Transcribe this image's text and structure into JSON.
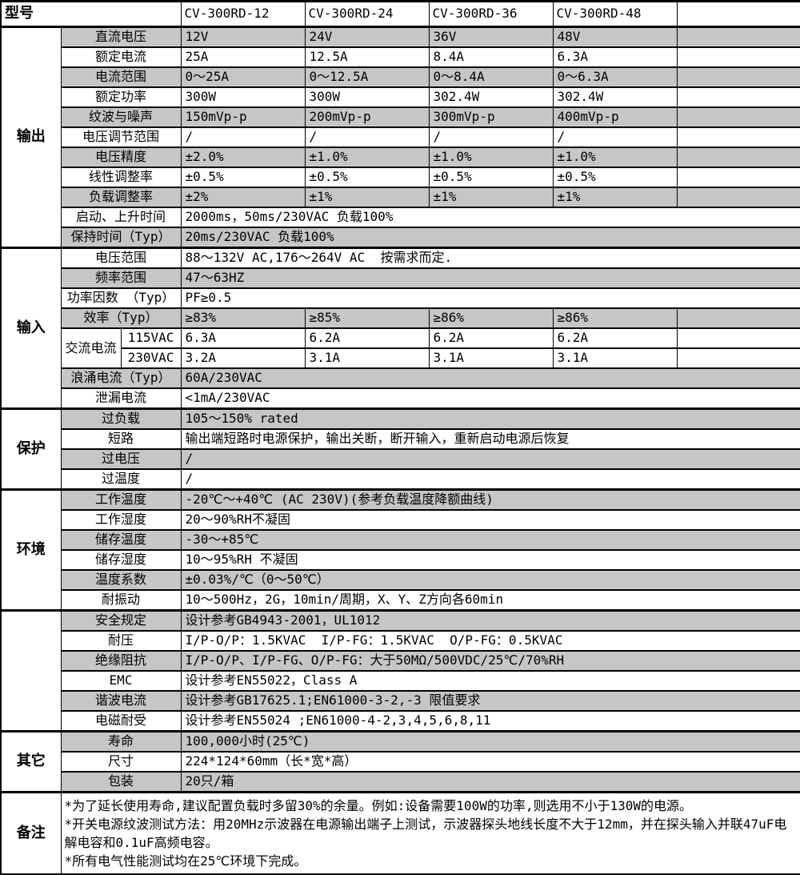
{
  "colors": {
    "shade_row": "#c6c6c6",
    "border": "#000000",
    "background": "#ffffff"
  },
  "header": {
    "model_label": "型号",
    "models": [
      "CV-300RD-12",
      "CV-300RD-24",
      "CV-300RD-36",
      "CV-300RD-48"
    ]
  },
  "sections": [
    {
      "label": "输出",
      "rows": [
        {
          "label": "直流电压",
          "shade": true,
          "values": [
            "12V",
            "24V",
            "36V",
            "48V"
          ]
        },
        {
          "label": "额定电流",
          "shade": false,
          "values": [
            "25A",
            "12.5A",
            "8.4A",
            "6.3A"
          ]
        },
        {
          "label": "电流范围",
          "shade": true,
          "values": [
            "0～25A",
            "0～12.5A",
            "0～8.4A",
            "0～6.3A"
          ]
        },
        {
          "label": "额定功率",
          "shade": false,
          "values": [
            "300W",
            "300W",
            "302.4W",
            "302.4W"
          ]
        },
        {
          "label": "纹波与噪声",
          "shade": true,
          "values": [
            "150mVp-p",
            "200mVp-p",
            "300mVp-p",
            "400mVp-p"
          ]
        },
        {
          "label": "电压调节范围",
          "shade": false,
          "values": [
            "/",
            "/",
            "/",
            "/"
          ]
        },
        {
          "label": "电压精度",
          "shade": true,
          "values": [
            "±2.0%",
            "±1.0%",
            "±1.0%",
            "±1.0%"
          ]
        },
        {
          "label": "线性调整率",
          "shade": false,
          "values": [
            "±0.5%",
            "±0.5%",
            "±0.5%",
            "±0.5%"
          ]
        },
        {
          "label": "负载调整率",
          "shade": true,
          "values": [
            "±2%",
            "±1%",
            "±1%",
            "±1%"
          ]
        },
        {
          "label": "启动、上升时间",
          "shade": false,
          "span": "2000ms，50ms/230VAC 负载100%"
        },
        {
          "label": "保持时间（Typ）",
          "shade": true,
          "span": "20ms/230VAC 负载100%"
        }
      ]
    },
    {
      "label": "输入",
      "rows": [
        {
          "label": "电压范围",
          "shade": false,
          "span": "88～132V AC,176～264V AC  按需求而定."
        },
        {
          "label": "频率范围",
          "shade": true,
          "span": "47～63HZ"
        },
        {
          "label": "功率因数 （Typ）",
          "shade": false,
          "span": "PF≥0.5"
        },
        {
          "label": "效率（Typ）",
          "shade": true,
          "values": [
            "≥83%",
            "≥85%",
            "≥86%",
            "≥86%"
          ]
        },
        {
          "group": "交流电流",
          "sublabel": "115VAC",
          "shade": false,
          "values": [
            "6.3A",
            "6.2A",
            "6.2A",
            "6.2A"
          ]
        },
        {
          "sublabel": "230VAC",
          "shade": false,
          "values": [
            "3.2A",
            "3.1A",
            "3.1A",
            "3.1A"
          ]
        },
        {
          "label": "浪涌电流（Typ）",
          "shade": true,
          "span": "60A/230VAC"
        },
        {
          "label": "泄漏电流",
          "shade": false,
          "span": "<1mA/230VAC"
        }
      ]
    },
    {
      "label": "保护",
      "rows": [
        {
          "label": "过负载",
          "shade": true,
          "span": "105～150% rated"
        },
        {
          "label": "短路",
          "shade": false,
          "span": "输出端短路时电源保护，输出关断，断开输入，重新启动电源后恢复"
        },
        {
          "label": "过电压",
          "shade": true,
          "span": "/"
        },
        {
          "label": "过温度",
          "shade": false,
          "span": "/"
        }
      ]
    },
    {
      "label": "环境",
      "rows": [
        {
          "label": "工作温度",
          "shade": true,
          "span": "-20℃～+40℃ (AC 230V)(参考负载温度降额曲线)"
        },
        {
          "label": "工作湿度",
          "shade": false,
          "span": "20～90%RH不凝固"
        },
        {
          "label": "储存温度",
          "shade": true,
          "span": "-30～+85℃"
        },
        {
          "label": "储存湿度",
          "shade": false,
          "span": "10～95%RH 不凝固"
        },
        {
          "label": "温度系数",
          "shade": true,
          "span": "±0.03%/℃（0～50℃）"
        },
        {
          "label": "耐振动",
          "shade": false,
          "span": "10～500Hz，2G，10min/周期，X、Y、Z方向各60min"
        }
      ]
    },
    {
      "label": "",
      "rows": [
        {
          "label": "安全规定",
          "shade": true,
          "span": "设计参考GB4943-2001，UL1012"
        },
        {
          "label": "耐压",
          "shade": false,
          "span": "I/P-O/P：1.5KVAC  I/P-FG：1.5KVAC  O/P-FG：0.5KVAC"
        },
        {
          "label": "绝缘阻抗",
          "shade": true,
          "span": "I/P-O/P、I/P-FG、O/P-FG：大于50MΩ/500VDC/25℃/70%RH"
        },
        {
          "label": "EMC",
          "shade": false,
          "span": "设计参考EN55022，Class A"
        },
        {
          "label": "谐波电流",
          "shade": true,
          "span": "设计参考GB17625.1;EN61000-3-2,-3 限值要求"
        },
        {
          "label": "电磁耐受",
          "shade": false,
          "span": "设计参考EN55024 ;EN61000-4-2,3,4,5,6,8,11"
        }
      ]
    },
    {
      "label": "其它",
      "rows": [
        {
          "label": "寿命",
          "shade": true,
          "span": "100,000小时(25℃)"
        },
        {
          "label": "尺寸",
          "shade": false,
          "span": "224*124*60mm（长*宽*高）"
        },
        {
          "label": "包装",
          "shade": true,
          "span": "20只/箱"
        }
      ]
    }
  ],
  "notes": {
    "label": "备注",
    "lines": [
      "*为了延长使用寿命,建议配置负载时多留30%的余量。例如:设备需要100W的功率,则选用不小于130W的电源。",
      "*开关电源纹波测试方法：用20MHz示波器在电源输出端子上测试，示波器探头地线长度不大于12mm，并在探头输入并联47uF电解电容和0.1uF高频电容。",
      "*所有电气性能测试均在25℃环境下完成。"
    ]
  }
}
